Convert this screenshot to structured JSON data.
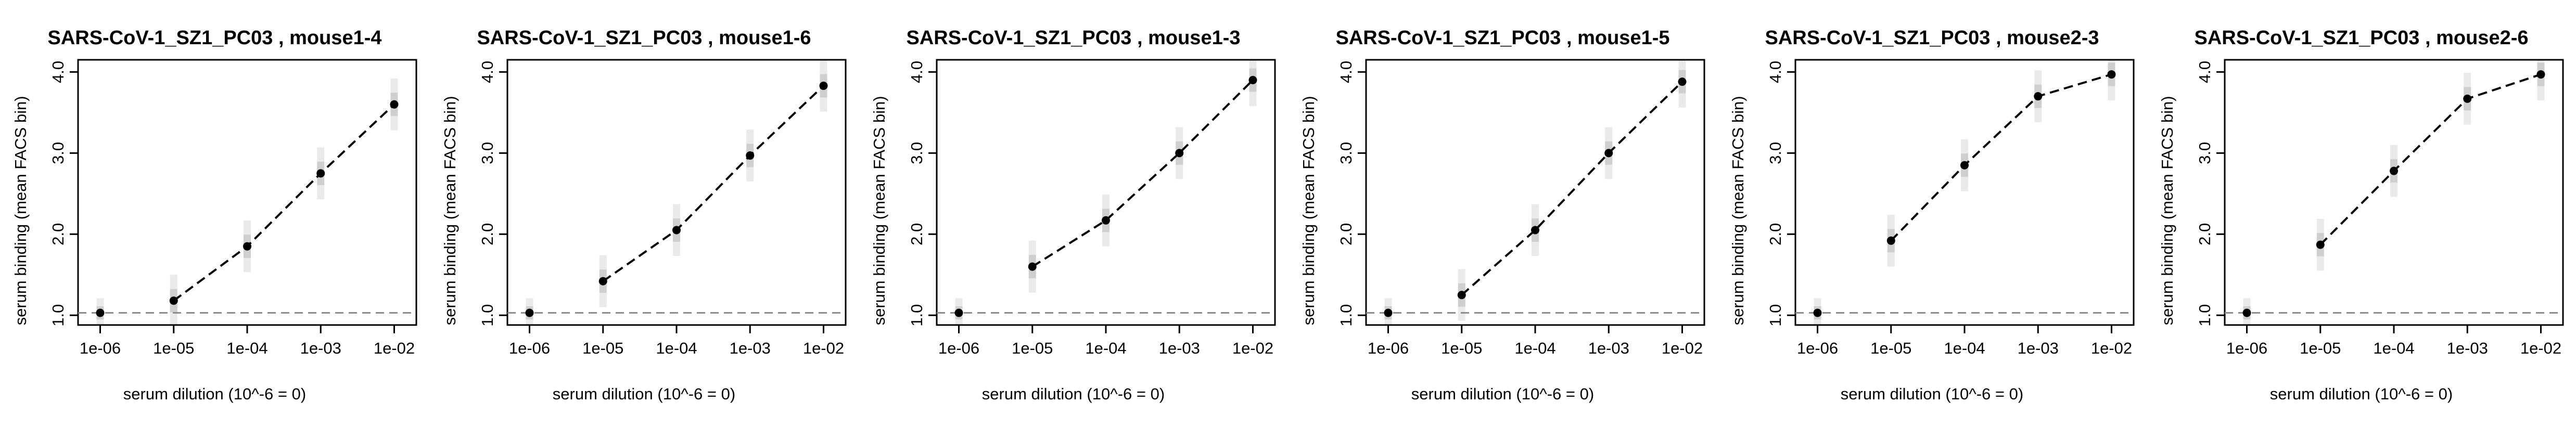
{
  "chart_data": [
    {
      "type": "line",
      "title": "SARS-CoV-1_SZ1_PC03 , mouse1-4",
      "xlabel": "serum dilution (10^-6 = 0)",
      "ylabel": "serum binding (mean FACS bin)",
      "log_x": true,
      "x": [
        1e-06,
        1e-05,
        0.0001,
        0.001,
        0.01
      ],
      "y": [
        1.03,
        1.18,
        1.85,
        2.75,
        3.6
      ],
      "x_tick_labels": [
        "1e-06",
        "1e-05",
        "1e-04",
        "1e-03",
        "1e-02"
      ],
      "y_tick_labels": [
        "1.0",
        "2.0",
        "3.0",
        "4.0"
      ],
      "baseline": 1.03,
      "ylim": [
        0.88,
        4.15
      ],
      "xlim": [
        5e-07,
        0.02
      ]
    },
    {
      "type": "line",
      "title": "SARS-CoV-1_SZ1_PC03 , mouse1-6",
      "xlabel": "serum dilution (10^-6 = 0)",
      "ylabel": "serum binding (mean FACS bin)",
      "log_x": true,
      "x": [
        1e-06,
        1e-05,
        0.0001,
        0.001,
        0.01
      ],
      "y": [
        1.03,
        1.42,
        2.05,
        2.97,
        3.83
      ],
      "x_tick_labels": [
        "1e-06",
        "1e-05",
        "1e-04",
        "1e-03",
        "1e-02"
      ],
      "y_tick_labels": [
        "1.0",
        "2.0",
        "3.0",
        "4.0"
      ],
      "baseline": 1.03,
      "ylim": [
        0.88,
        4.15
      ],
      "xlim": [
        5e-07,
        0.02
      ]
    },
    {
      "type": "line",
      "title": "SARS-CoV-1_SZ1_PC03 , mouse1-3",
      "xlabel": "serum dilution (10^-6 = 0)",
      "ylabel": "serum binding (mean FACS bin)",
      "log_x": true,
      "x": [
        1e-06,
        1e-05,
        0.0001,
        0.001,
        0.01
      ],
      "y": [
        1.03,
        1.6,
        2.17,
        3.0,
        3.9
      ],
      "x_tick_labels": [
        "1e-06",
        "1e-05",
        "1e-04",
        "1e-03",
        "1e-02"
      ],
      "y_tick_labels": [
        "1.0",
        "2.0",
        "3.0",
        "4.0"
      ],
      "baseline": 1.03,
      "ylim": [
        0.88,
        4.15
      ],
      "xlim": [
        5e-07,
        0.02
      ]
    },
    {
      "type": "line",
      "title": "SARS-CoV-1_SZ1_PC03 , mouse1-5",
      "xlabel": "serum dilution (10^-6 = 0)",
      "ylabel": "serum binding (mean FACS bin)",
      "log_x": true,
      "x": [
        1e-06,
        1e-05,
        0.0001,
        0.001,
        0.01
      ],
      "y": [
        1.03,
        1.25,
        2.05,
        3.0,
        3.88
      ],
      "x_tick_labels": [
        "1e-06",
        "1e-05",
        "1e-04",
        "1e-03",
        "1e-02"
      ],
      "y_tick_labels": [
        "1.0",
        "2.0",
        "3.0",
        "4.0"
      ],
      "baseline": 1.03,
      "ylim": [
        0.88,
        4.15
      ],
      "xlim": [
        5e-07,
        0.02
      ]
    },
    {
      "type": "line",
      "title": "SARS-CoV-1_SZ1_PC03 , mouse2-3",
      "xlabel": "serum dilution (10^-6 = 0)",
      "ylabel": "serum binding (mean FACS bin)",
      "log_x": true,
      "x": [
        1e-06,
        1e-05,
        0.0001,
        0.001,
        0.01
      ],
      "y": [
        1.03,
        1.92,
        2.85,
        3.7,
        3.97
      ],
      "x_tick_labels": [
        "1e-06",
        "1e-05",
        "1e-04",
        "1e-03",
        "1e-02"
      ],
      "y_tick_labels": [
        "1.0",
        "2.0",
        "3.0",
        "4.0"
      ],
      "baseline": 1.03,
      "ylim": [
        0.88,
        4.15
      ],
      "xlim": [
        5e-07,
        0.02
      ]
    },
    {
      "type": "line",
      "title": "SARS-CoV-1_SZ1_PC03 , mouse2-6",
      "xlabel": "serum dilution (10^-6 = 0)",
      "ylabel": "serum binding (mean FACS bin)",
      "log_x": true,
      "x": [
        1e-06,
        1e-05,
        0.0001,
        0.001,
        0.01
      ],
      "y": [
        1.03,
        1.87,
        2.78,
        3.67,
        3.97
      ],
      "x_tick_labels": [
        "1e-06",
        "1e-05",
        "1e-04",
        "1e-03",
        "1e-02"
      ],
      "y_tick_labels": [
        "1.0",
        "2.0",
        "3.0",
        "4.0"
      ],
      "baseline": 1.03,
      "ylim": [
        0.88,
        4.15
      ],
      "xlim": [
        5e-07,
        0.02
      ]
    }
  ]
}
